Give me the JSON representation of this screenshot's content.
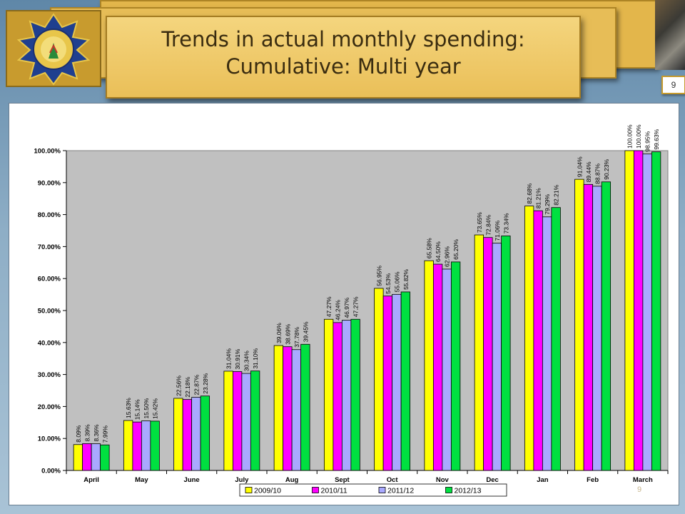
{
  "slide": {
    "title_line1": "Trends in actual monthly spending:",
    "title_line2": "Cumulative: Multi year",
    "page_number": "9",
    "footer_number": "9"
  },
  "colors": {
    "series": [
      "#ffff00",
      "#ff00ff",
      "#a9a9ff",
      "#00e040"
    ],
    "plot_bg": "#c0c0c0",
    "banner": "#eabf58"
  },
  "chart_data": {
    "type": "bar",
    "categories": [
      "April",
      "May",
      "June",
      "July",
      "Aug",
      "Sept",
      "Oct",
      "Nov",
      "Dec",
      "Jan",
      "Feb",
      "March"
    ],
    "series": [
      {
        "name": "2009/10",
        "values": [
          8.09,
          15.63,
          22.56,
          31.04,
          39.06,
          47.27,
          56.95,
          65.58,
          73.65,
          82.68,
          91.04,
          100.0
        ]
      },
      {
        "name": "2010/11",
        "values": [
          8.39,
          15.14,
          22.18,
          30.91,
          38.69,
          46.24,
          54.53,
          64.5,
          72.84,
          81.21,
          89.44,
          100.0
        ]
      },
      {
        "name": "2011/12",
        "values": [
          8.36,
          15.5,
          22.87,
          30.34,
          37.78,
          46.97,
          55.06,
          62.96,
          71.06,
          79.29,
          88.87,
          98.95
        ]
      },
      {
        "name": "2012/13",
        "values": [
          7.99,
          15.42,
          23.28,
          31.1,
          39.45,
          47.27,
          55.82,
          65.2,
          73.34,
          82.21,
          90.23,
          99.63
        ]
      }
    ],
    "value_labels": [
      [
        "8.09%",
        "15.63%",
        "22.56%",
        "31.04%",
        "39.06%",
        "47.27%",
        "56.95%",
        "65.58%",
        "73.65%",
        "82.68%",
        "91.04%",
        "100.00%"
      ],
      [
        "8.39%",
        "15.14%",
        "22.18%",
        "30.91%",
        "38.69%",
        "46.24%",
        "54.53%",
        "64.50%",
        "72.84%",
        "81.21%",
        "89.44%",
        "100.00%"
      ],
      [
        "8.36%",
        "15.50%",
        "22.87%",
        "30.34%",
        "37.78%",
        "46.97%",
        "55.06%",
        "62.96%",
        "71.06%",
        "79.29%",
        "88.87%",
        "98.95%"
      ],
      [
        "7.99%",
        "15.42%",
        "23.28%",
        "31.10%",
        "39.45%",
        "47.27%",
        "55.82%",
        "65.20%",
        "73.34%",
        "82.21%",
        "90.23%",
        "99.63%"
      ]
    ],
    "ylim": [
      0,
      100
    ],
    "yticks": [
      "0.00%",
      "10.00%",
      "20.00%",
      "30.00%",
      "40.00%",
      "50.00%",
      "60.00%",
      "70.00%",
      "80.00%",
      "90.00%",
      "100.00%"
    ],
    "grid": false,
    "legend_position": "bottom",
    "xlabel": "",
    "ylabel": ""
  }
}
